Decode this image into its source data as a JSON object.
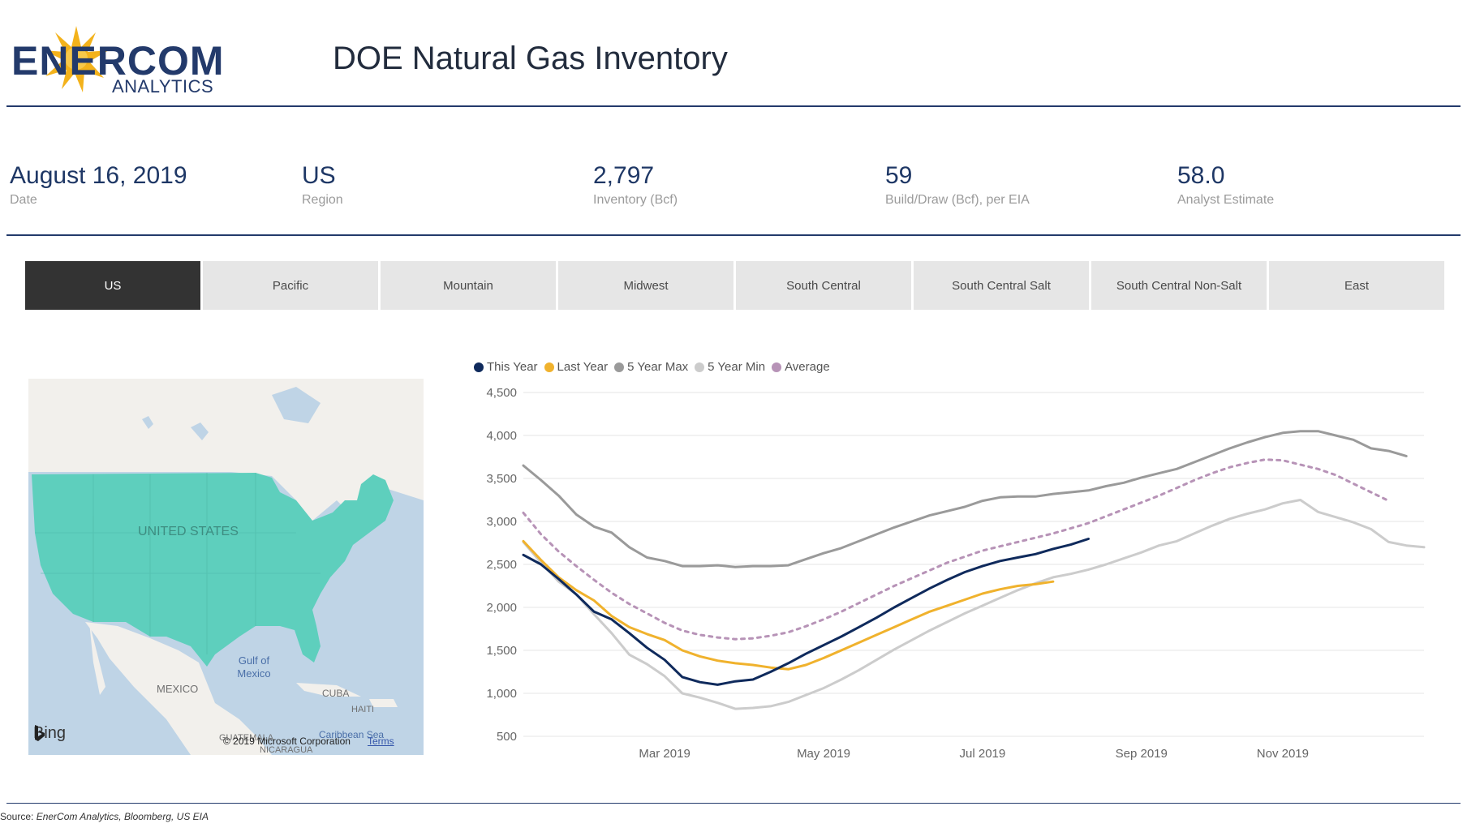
{
  "header": {
    "logo_word": "ENERCOM",
    "logo_sub": "ANALYTICS",
    "title": "DOE Natural Gas Inventory"
  },
  "kpis": [
    {
      "value": "August 16, 2019",
      "label": "Date"
    },
    {
      "value": "US",
      "label": "Region"
    },
    {
      "value": "2,797",
      "label": "Inventory (Bcf)"
    },
    {
      "value": "59",
      "label": "Build/Draw (Bcf), per EIA"
    },
    {
      "value": "58.0",
      "label": "Analyst Estimate"
    }
  ],
  "tabs": [
    {
      "label": "US",
      "active": true
    },
    {
      "label": "Pacific",
      "active": false
    },
    {
      "label": "Mountain",
      "active": false
    },
    {
      "label": "Midwest",
      "active": false
    },
    {
      "label": "South Central",
      "active": false
    },
    {
      "label": "South Central Salt",
      "active": false
    },
    {
      "label": "South Central Non-Salt",
      "active": false
    },
    {
      "label": "East",
      "active": false
    }
  ],
  "map": {
    "labels": {
      "country": "UNITED STATES",
      "gulf": "Gulf of Mexico",
      "mexico": "MEXICO",
      "cuba": "CUBA",
      "haiti": "HAITI",
      "caribbean": "Caribbean Sea",
      "guatemala": "GUATEMALA",
      "nicaragua": "NICARAGUA"
    },
    "provider": "Bing",
    "copyright": "© 2019 Microsoft Corporation",
    "terms": "Terms",
    "highlight_color": "#5ecfbd"
  },
  "chart_data": {
    "type": "line",
    "title": "",
    "xlabel": "",
    "ylabel": "",
    "ylim": [
      500,
      4500
    ],
    "yticks": [
      500,
      1000,
      1500,
      2000,
      2500,
      3000,
      3500,
      4000,
      4500
    ],
    "ytick_labels": [
      "500",
      "1,000",
      "1,500",
      "2,000",
      "2,500",
      "3,000",
      "3,500",
      "4,000",
      "4,500"
    ],
    "xlim": [
      1,
      52
    ],
    "xticks": [
      9,
      18,
      27,
      36,
      44
    ],
    "xtick_labels": [
      "Mar 2019",
      "May 2019",
      "Jul 2019",
      "Sep 2019",
      "Nov 2019"
    ],
    "grid": true,
    "legend_position": "top-left",
    "series": [
      {
        "name": "5 Year Max",
        "color": "#9a9a9a",
        "dash": false,
        "points": [
          [
            1,
            3650
          ],
          [
            2,
            3480
          ],
          [
            3,
            3300
          ],
          [
            4,
            3080
          ],
          [
            5,
            2940
          ],
          [
            6,
            2870
          ],
          [
            7,
            2700
          ],
          [
            8,
            2580
          ],
          [
            9,
            2540
          ],
          [
            10,
            2480
          ],
          [
            11,
            2480
          ],
          [
            12,
            2490
          ],
          [
            13,
            2470
          ],
          [
            14,
            2480
          ],
          [
            15,
            2480
          ],
          [
            16,
            2490
          ],
          [
            17,
            2560
          ],
          [
            18,
            2630
          ],
          [
            19,
            2690
          ],
          [
            20,
            2770
          ],
          [
            21,
            2850
          ],
          [
            22,
            2930
          ],
          [
            23,
            3000
          ],
          [
            24,
            3070
          ],
          [
            25,
            3120
          ],
          [
            26,
            3170
          ],
          [
            27,
            3240
          ],
          [
            28,
            3280
          ],
          [
            29,
            3290
          ],
          [
            30,
            3290
          ],
          [
            31,
            3320
          ],
          [
            32,
            3340
          ],
          [
            33,
            3360
          ],
          [
            34,
            3410
          ],
          [
            35,
            3450
          ],
          [
            36,
            3510
          ],
          [
            37,
            3560
          ],
          [
            38,
            3610
          ],
          [
            39,
            3690
          ],
          [
            40,
            3770
          ],
          [
            41,
            3850
          ],
          [
            42,
            3920
          ],
          [
            43,
            3980
          ],
          [
            44,
            4030
          ],
          [
            45,
            4050
          ],
          [
            46,
            4050
          ],
          [
            47,
            4000
          ],
          [
            48,
            3950
          ],
          [
            49,
            3850
          ],
          [
            50,
            3820
          ],
          [
            51,
            3760
          ]
        ]
      },
      {
        "name": "Average",
        "color": "#b793b7",
        "dash": true,
        "points": [
          [
            1,
            3100
          ],
          [
            2,
            2850
          ],
          [
            3,
            2650
          ],
          [
            4,
            2480
          ],
          [
            5,
            2320
          ],
          [
            6,
            2170
          ],
          [
            7,
            2040
          ],
          [
            8,
            1930
          ],
          [
            9,
            1820
          ],
          [
            10,
            1730
          ],
          [
            11,
            1680
          ],
          [
            12,
            1650
          ],
          [
            13,
            1630
          ],
          [
            14,
            1640
          ],
          [
            15,
            1670
          ],
          [
            16,
            1710
          ],
          [
            17,
            1780
          ],
          [
            18,
            1860
          ],
          [
            19,
            1950
          ],
          [
            20,
            2050
          ],
          [
            21,
            2150
          ],
          [
            22,
            2250
          ],
          [
            23,
            2340
          ],
          [
            24,
            2430
          ],
          [
            25,
            2520
          ],
          [
            26,
            2590
          ],
          [
            27,
            2660
          ],
          [
            28,
            2710
          ],
          [
            29,
            2760
          ],
          [
            30,
            2810
          ],
          [
            31,
            2860
          ],
          [
            32,
            2920
          ],
          [
            33,
            2980
          ],
          [
            34,
            3060
          ],
          [
            35,
            3140
          ],
          [
            36,
            3220
          ],
          [
            37,
            3300
          ],
          [
            38,
            3390
          ],
          [
            39,
            3480
          ],
          [
            40,
            3560
          ],
          [
            41,
            3630
          ],
          [
            42,
            3680
          ],
          [
            43,
            3720
          ],
          [
            44,
            3710
          ],
          [
            45,
            3660
          ],
          [
            46,
            3610
          ],
          [
            47,
            3540
          ],
          [
            48,
            3440
          ],
          [
            49,
            3340
          ],
          [
            50,
            3240
          ]
        ]
      },
      {
        "name": "5 Year Min",
        "color": "#cccccc",
        "dash": false,
        "points": [
          [
            1,
            2760
          ],
          [
            2,
            2520
          ],
          [
            3,
            2300
          ],
          [
            4,
            2150
          ],
          [
            5,
            1920
          ],
          [
            6,
            1700
          ],
          [
            7,
            1450
          ],
          [
            8,
            1340
          ],
          [
            9,
            1200
          ],
          [
            10,
            1000
          ],
          [
            11,
            950
          ],
          [
            12,
            890
          ],
          [
            13,
            820
          ],
          [
            14,
            830
          ],
          [
            15,
            850
          ],
          [
            16,
            900
          ],
          [
            17,
            980
          ],
          [
            18,
            1060
          ],
          [
            19,
            1160
          ],
          [
            20,
            1270
          ],
          [
            21,
            1390
          ],
          [
            22,
            1510
          ],
          [
            23,
            1620
          ],
          [
            24,
            1730
          ],
          [
            25,
            1830
          ],
          [
            26,
            1930
          ],
          [
            27,
            2020
          ],
          [
            28,
            2110
          ],
          [
            29,
            2200
          ],
          [
            30,
            2280
          ],
          [
            31,
            2350
          ],
          [
            32,
            2390
          ],
          [
            33,
            2440
          ],
          [
            34,
            2500
          ],
          [
            35,
            2570
          ],
          [
            36,
            2640
          ],
          [
            37,
            2720
          ],
          [
            38,
            2770
          ],
          [
            39,
            2860
          ],
          [
            40,
            2950
          ],
          [
            41,
            3030
          ],
          [
            42,
            3090
          ],
          [
            43,
            3140
          ],
          [
            44,
            3210
          ],
          [
            45,
            3250
          ],
          [
            46,
            3110
          ],
          [
            47,
            3050
          ],
          [
            48,
            2990
          ],
          [
            49,
            2910
          ],
          [
            50,
            2760
          ],
          [
            51,
            2720
          ],
          [
            52,
            2700
          ]
        ]
      },
      {
        "name": "Last Year",
        "color": "#f0b22d",
        "dash": false,
        "points": [
          [
            1,
            2770
          ],
          [
            2,
            2550
          ],
          [
            3,
            2350
          ],
          [
            4,
            2200
          ],
          [
            5,
            2080
          ],
          [
            6,
            1900
          ],
          [
            7,
            1770
          ],
          [
            8,
            1690
          ],
          [
            9,
            1620
          ],
          [
            10,
            1500
          ],
          [
            11,
            1430
          ],
          [
            12,
            1380
          ],
          [
            13,
            1350
          ],
          [
            14,
            1330
          ],
          [
            15,
            1300
          ],
          [
            16,
            1280
          ],
          [
            17,
            1330
          ],
          [
            18,
            1410
          ],
          [
            19,
            1500
          ],
          [
            20,
            1590
          ],
          [
            21,
            1680
          ],
          [
            22,
            1770
          ],
          [
            23,
            1860
          ],
          [
            24,
            1950
          ],
          [
            25,
            2020
          ],
          [
            26,
            2090
          ],
          [
            27,
            2160
          ],
          [
            28,
            2210
          ],
          [
            29,
            2250
          ],
          [
            30,
            2270
          ],
          [
            31,
            2300
          ]
        ]
      },
      {
        "name": "This Year",
        "color": "#0f2a5c",
        "dash": false,
        "points": [
          [
            1,
            2610
          ],
          [
            2,
            2500
          ],
          [
            3,
            2330
          ],
          [
            4,
            2150
          ],
          [
            5,
            1950
          ],
          [
            6,
            1860
          ],
          [
            7,
            1700
          ],
          [
            8,
            1530
          ],
          [
            9,
            1390
          ],
          [
            10,
            1190
          ],
          [
            11,
            1130
          ],
          [
            12,
            1100
          ],
          [
            13,
            1140
          ],
          [
            14,
            1160
          ],
          [
            15,
            1250
          ],
          [
            16,
            1350
          ],
          [
            17,
            1460
          ],
          [
            18,
            1560
          ],
          [
            19,
            1660
          ],
          [
            20,
            1770
          ],
          [
            21,
            1880
          ],
          [
            22,
            2000
          ],
          [
            23,
            2110
          ],
          [
            24,
            2220
          ],
          [
            25,
            2320
          ],
          [
            26,
            2410
          ],
          [
            27,
            2480
          ],
          [
            28,
            2540
          ],
          [
            29,
            2580
          ],
          [
            30,
            2620
          ],
          [
            31,
            2680
          ],
          [
            32,
            2730
          ],
          [
            33,
            2797
          ]
        ]
      }
    ],
    "legend": [
      {
        "name": "This Year",
        "color": "#0f2a5c"
      },
      {
        "name": "Last Year",
        "color": "#f0b22d"
      },
      {
        "name": "5 Year Max",
        "color": "#9a9a9a"
      },
      {
        "name": "5 Year Min",
        "color": "#cccccc"
      },
      {
        "name": "Average",
        "color": "#b793b7"
      }
    ]
  },
  "footer": {
    "source_prefix": "Source:",
    "source_text": "EnerCom Analytics, Bloomberg, US EIA"
  }
}
